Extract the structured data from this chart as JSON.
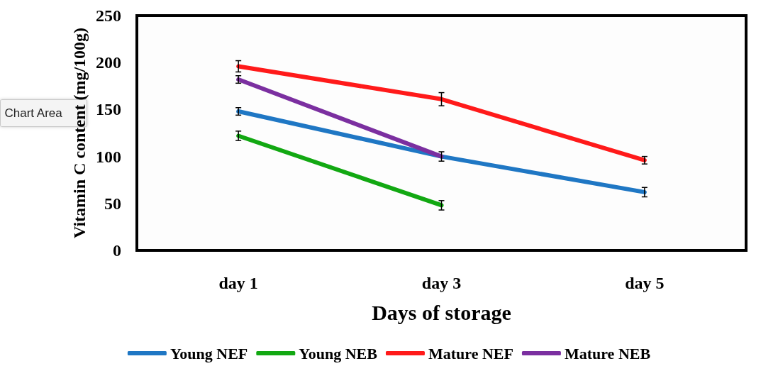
{
  "chart_data": {
    "type": "line",
    "xlabel": "Days of storage",
    "ylabel": "Vitamin C content (mg/100g)",
    "categories": [
      "day 1",
      "day 3",
      "day 5"
    ],
    "ylim": [
      0,
      250
    ],
    "yticks": [
      0,
      50,
      100,
      150,
      200,
      250
    ],
    "grid": false,
    "legend": "bottom",
    "marker": "none",
    "line_style": "solid",
    "annotations": [
      "Chart Area"
    ],
    "series": [
      {
        "name": "Young NEF",
        "color": "#1f77c4",
        "values": [
          148,
          100,
          62
        ],
        "errors": [
          4,
          5,
          5
        ]
      },
      {
        "name": "Young NEB",
        "color": "#12a812",
        "values": [
          122,
          48,
          null
        ],
        "errors": [
          5,
          5,
          null
        ]
      },
      {
        "name": "Mature NEF",
        "color": "#ff1a1a",
        "values": [
          196,
          161,
          96
        ],
        "errors": [
          6,
          7,
          4
        ]
      },
      {
        "name": "Mature NEB",
        "color": "#7b2fa0",
        "values": [
          182,
          100,
          null
        ],
        "errors": [
          4,
          null,
          null
        ]
      }
    ]
  }
}
